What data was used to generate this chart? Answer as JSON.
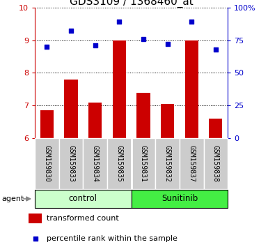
{
  "title": "GDS3109 / 1368460_at",
  "samples": [
    "GSM159830",
    "GSM159833",
    "GSM159834",
    "GSM159835",
    "GSM159831",
    "GSM159832",
    "GSM159837",
    "GSM159838"
  ],
  "bar_values": [
    6.85,
    7.8,
    7.1,
    9.0,
    7.4,
    7.05,
    9.0,
    6.6
  ],
  "dot_values": [
    70,
    82,
    71,
    89,
    76,
    72,
    89,
    68
  ],
  "bar_color": "#cc0000",
  "dot_color": "#0000cc",
  "ylim_left": [
    6,
    10
  ],
  "ylim_right": [
    0,
    100
  ],
  "yticks_left": [
    6,
    7,
    8,
    9,
    10
  ],
  "yticks_right": [
    0,
    25,
    50,
    75,
    100
  ],
  "yticklabels_right": [
    "0",
    "25",
    "50",
    "75",
    "100%"
  ],
  "groups": [
    {
      "label": "control",
      "indices": [
        0,
        1,
        2,
        3
      ],
      "color": "#ccffcc"
    },
    {
      "label": "Sunitinib",
      "indices": [
        4,
        5,
        6,
        7
      ],
      "color": "#44ee44"
    }
  ],
  "agent_label": "agent",
  "legend_bar_label": "transformed count",
  "legend_dot_label": "percentile rank within the sample",
  "grid_color": "#000000",
  "label_bg_color": "#cccccc",
  "bar_width": 0.55,
  "title_fontsize": 11,
  "tick_fontsize": 8,
  "legend_fontsize": 8,
  "sample_fontsize": 7
}
